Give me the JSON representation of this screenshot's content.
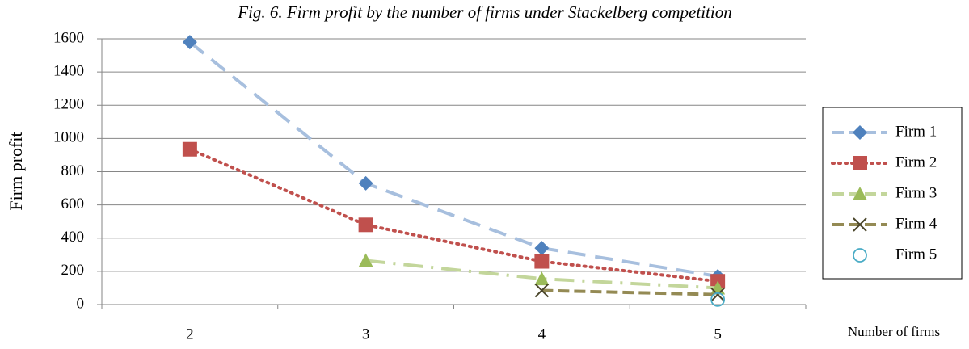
{
  "chart_data": {
    "type": "line",
    "title": "Fig. 6. Firm profit by the number of firms under Stackelberg competition",
    "y_label": "Firm profit",
    "x_label": "Number of firms",
    "categories": [
      "2",
      "3",
      "4",
      "5"
    ],
    "ylim": [
      0,
      1600
    ],
    "yticks": [
      0,
      200,
      400,
      600,
      800,
      1000,
      1200,
      1400,
      1600
    ],
    "grid": true,
    "legend": "right",
    "series": [
      {
        "name": "Firm 1",
        "color": "#4f81bd",
        "line_color": "#a7bfde",
        "marker": "diamond",
        "dash": "22 12",
        "values": [
          1580,
          730,
          340,
          170
        ]
      },
      {
        "name": "Firm 2",
        "color": "#c0504d",
        "line_color": "#c0504d",
        "marker": "square",
        "dash": "2 6",
        "values": [
          935,
          480,
          260,
          140
        ]
      },
      {
        "name": "Firm 3",
        "color": "#9bbb59",
        "line_color": "#c3d69b",
        "marker": "triangle",
        "dash": "24 10 3 10",
        "values": [
          null,
          265,
          155,
          100
        ]
      },
      {
        "name": "Firm 4",
        "color": "#4a452a",
        "line_color": "#948a54",
        "marker": "x",
        "dash": "14 6",
        "values": [
          null,
          null,
          85,
          60
        ]
      },
      {
        "name": "Firm 5",
        "color": "#4bacc6",
        "line_color": "#4bacc6",
        "marker": "circle",
        "dash": "none",
        "values": [
          null,
          null,
          null,
          30
        ]
      }
    ]
  }
}
